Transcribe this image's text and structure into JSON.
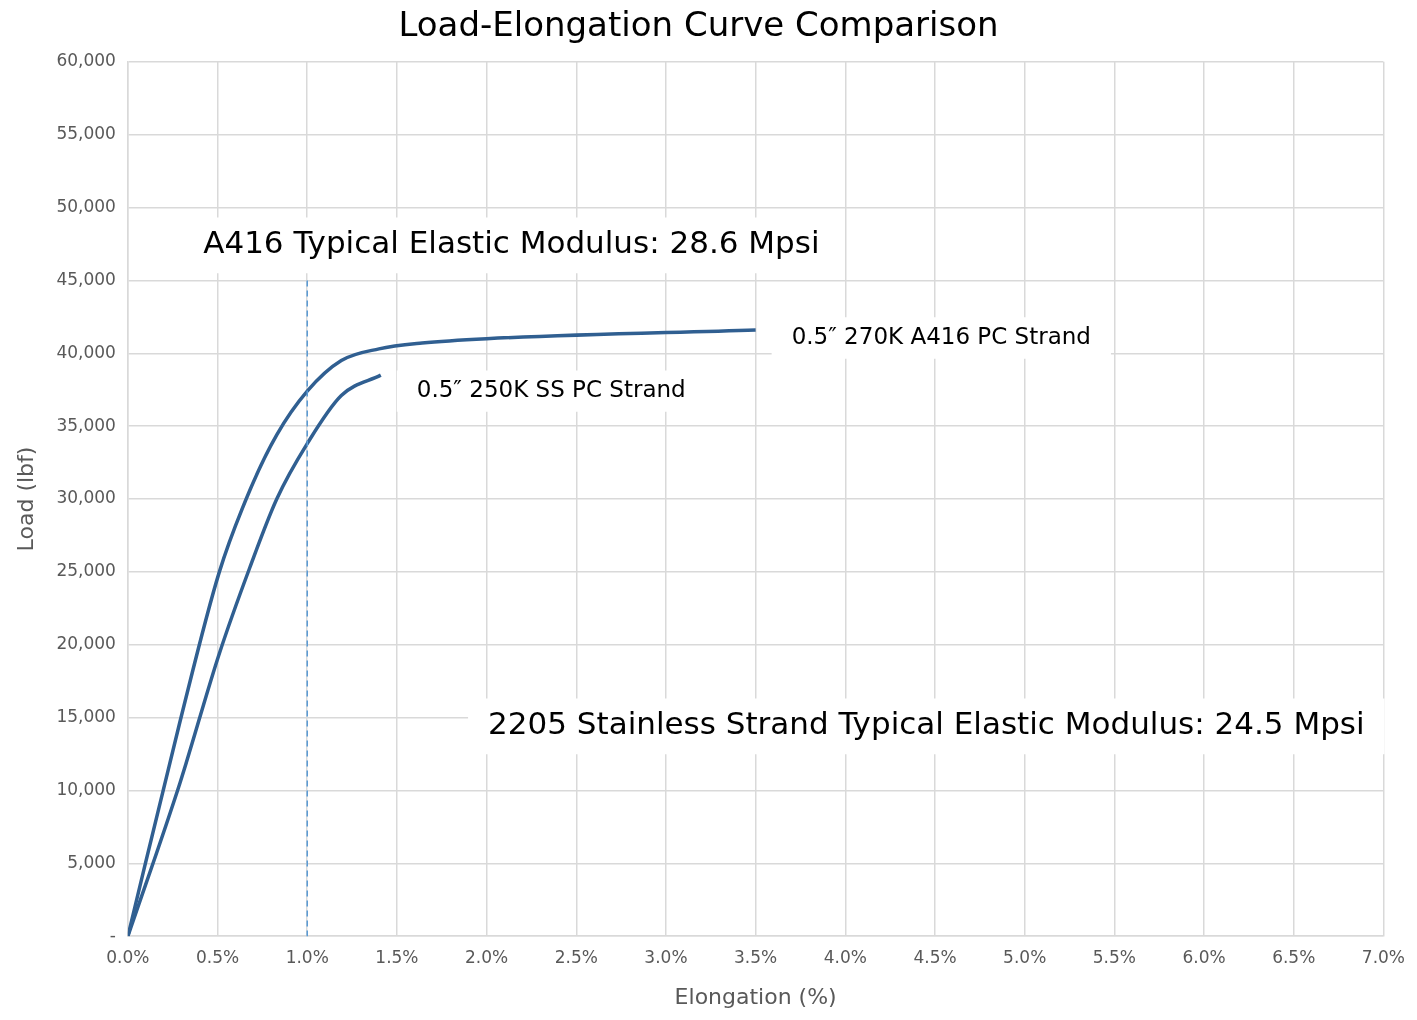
{
  "chart_data": {
    "type": "line",
    "title": "Load-Elongation Curve Comparison",
    "xlabel": "Elongation (%)",
    "ylabel": "Load (lbf)",
    "xlim": [
      0,
      7
    ],
    "xticks": [
      {
        "value": 0,
        "label": "0.0%"
      },
      {
        "value": 0.5,
        "label": "0.5%"
      },
      {
        "value": 1,
        "label": "1.0%"
      },
      {
        "value": 1.5,
        "label": "1.5%"
      },
      {
        "value": 2,
        "label": "2.0%"
      },
      {
        "value": 2.5,
        "label": "2.5%"
      },
      {
        "value": 3,
        "label": "3.0%"
      },
      {
        "value": 3.5,
        "label": "3.5%"
      },
      {
        "value": 4,
        "label": "4.0%"
      },
      {
        "value": 4.5,
        "label": "4.5%"
      },
      {
        "value": 5,
        "label": "5.0%"
      },
      {
        "value": 5.5,
        "label": "5.5%"
      },
      {
        "value": 6,
        "label": "6.0%"
      },
      {
        "value": 6.5,
        "label": "6.5%"
      },
      {
        "value": 7,
        "label": "7.0%"
      }
    ],
    "ylim": [
      0,
      60000
    ],
    "yticks": [
      {
        "value": 0,
        "label": "-"
      },
      {
        "value": 5000,
        "label": "5,000"
      },
      {
        "value": 10000,
        "label": "10,000"
      },
      {
        "value": 15000,
        "label": "15,000"
      },
      {
        "value": 20000,
        "label": "20,000"
      },
      {
        "value": 25000,
        "label": "25,000"
      },
      {
        "value": 30000,
        "label": "30,000"
      },
      {
        "value": 35000,
        "label": "35,000"
      },
      {
        "value": 40000,
        "label": "40,000"
      },
      {
        "value": 45000,
        "label": "45,000"
      },
      {
        "value": 50000,
        "label": "50,000"
      },
      {
        "value": 55000,
        "label": "55,000"
      },
      {
        "value": 60000,
        "label": "60,000"
      }
    ],
    "series": [
      {
        "name": "0.5″ 270K A416 PC Strand",
        "color": "#305f91",
        "x": [
          0,
          0.29,
          0.51,
          0.68,
          0.83,
          1.0,
          1.19,
          1.4,
          1.64,
          2.0,
          3.5
        ],
        "values": [
          0,
          14700,
          25000,
          30600,
          34400,
          37400,
          39500,
          40300,
          40700,
          41000,
          41600
        ]
      },
      {
        "name": "0.5″ 250K SS PC Strand",
        "color": "#305f91",
        "x": [
          0,
          0.29,
          0.51,
          0.68,
          0.83,
          1.0,
          1.19,
          1.41
        ],
        "values": [
          0,
          10500,
          19400,
          25300,
          30000,
          33800,
          37100,
          38500
        ]
      }
    ],
    "ref_lines": [
      {
        "axis": "x",
        "value": 1,
        "color": "#5b9bd5",
        "line_style": "dashed"
      }
    ],
    "annotations": [
      "A416 Typical Elastic Modulus: 28.6 Mpsi",
      "2205 Stainless Strand Typical Elastic Modulus: 24.5 Mpsi"
    ],
    "grid": true,
    "legend": false,
    "marker": "none",
    "line_style": "solid"
  }
}
